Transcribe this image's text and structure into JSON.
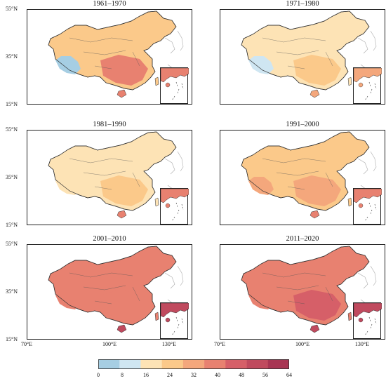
{
  "panels": [
    {
      "title": "1961–1970",
      "level": 24,
      "tibet_level": 6,
      "south_level": 40,
      "inset_level": 44
    },
    {
      "title": "1971–1980",
      "level": 22,
      "tibet_level": 14,
      "south_level": 26,
      "inset_level": 36
    },
    {
      "title": "1981–1990",
      "level": 22,
      "tibet_level": 18,
      "south_level": 26,
      "inset_level": 40
    },
    {
      "title": "1991–2000",
      "level": 30,
      "tibet_level": 36,
      "south_level": 34,
      "inset_level": 46
    },
    {
      "title": "2001–2010",
      "level": 42,
      "tibet_level": 44,
      "south_level": 46,
      "inset_level": 58
    },
    {
      "title": "2011–2020",
      "level": 44,
      "tibet_level": 46,
      "south_level": 48,
      "inset_level": 62
    }
  ],
  "axes": {
    "lat_labels": [
      "55°N",
      "35°N",
      "15°N"
    ],
    "lon_labels": [
      "70°E",
      "100°E",
      "130°E"
    ]
  },
  "legend": {
    "ticks": [
      "0",
      "8",
      "16",
      "24",
      "32",
      "40",
      "48",
      "56",
      "64"
    ],
    "colors": [
      "#a6cee3",
      "#cfe6f2",
      "#fde3b5",
      "#fbc98a",
      "#f4a77c",
      "#e88170",
      "#d65f68",
      "#c04a5e",
      "#a83553"
    ]
  }
}
